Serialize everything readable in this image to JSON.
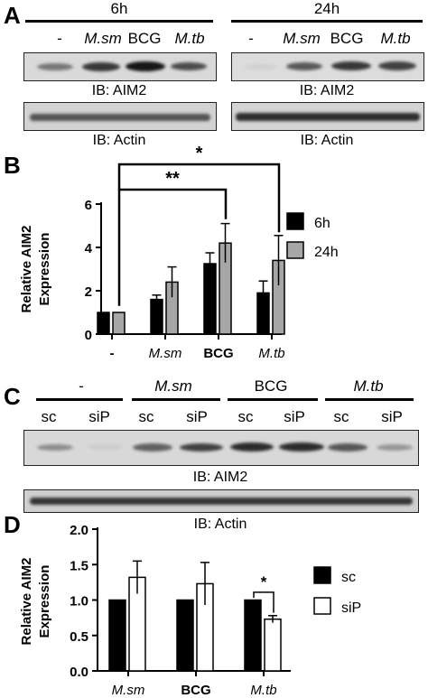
{
  "panelA": {
    "letter": "A",
    "groups": [
      {
        "time": "6h",
        "lanes": [
          "-",
          "M.sm",
          "BCG",
          "M.tb"
        ],
        "aim2_intensity": [
          0.45,
          0.75,
          0.9,
          0.65
        ],
        "actin_intensity": [
          0.6,
          0.6,
          0.6,
          0.6
        ]
      },
      {
        "time": "24h",
        "lanes": [
          "-",
          "M.sm",
          "BCG",
          "M.tb"
        ],
        "aim2_intensity": [
          0.05,
          0.6,
          0.75,
          0.7
        ],
        "actin_intensity": [
          0.8,
          0.75,
          0.75,
          0.75
        ]
      }
    ],
    "ib_aim2": "IB: AIM2",
    "ib_actin": "IB: Actin"
  },
  "panelB": {
    "letter": "B",
    "chart_data": {
      "type": "bar",
      "categories": [
        "-",
        "M.sm",
        "BCG",
        "M.tb"
      ],
      "category_italic": [
        false,
        true,
        false,
        true
      ],
      "category_bold": [
        true,
        false,
        true,
        false
      ],
      "series": [
        {
          "name": "6h",
          "values": [
            1.0,
            1.6,
            3.25,
            1.9
          ],
          "errors": [
            0,
            0.2,
            0.5,
            0.55
          ],
          "color": "#000000"
        },
        {
          "name": "24h",
          "values": [
            1.0,
            2.4,
            4.2,
            3.4
          ],
          "errors": [
            0,
            0.7,
            0.9,
            1.15
          ],
          "color": "#a6a6a6"
        }
      ],
      "ylabel": "Relative AIM2\nExpression",
      "ylim": [
        0,
        6
      ],
      "yticks": [
        "0",
        "2",
        "4",
        "6"
      ],
      "legend_placement": "right",
      "significance": [
        {
          "from": "-",
          "to": "BCG",
          "label": "**"
        },
        {
          "from": "-",
          "to": "M.tb",
          "label": "*"
        }
      ]
    }
  },
  "panelC": {
    "letter": "C",
    "groups": [
      {
        "label": "-",
        "italic": false,
        "lanes": [
          "sc",
          "siP"
        ],
        "aim2_intensity": [
          0.35,
          0.05
        ]
      },
      {
        "label": "M.sm",
        "italic": true,
        "lanes": [
          "sc",
          "siP"
        ],
        "aim2_intensity": [
          0.55,
          0.7
        ]
      },
      {
        "label": "BCG",
        "italic": false,
        "lanes": [
          "sc",
          "siP"
        ],
        "aim2_intensity": [
          0.8,
          0.8
        ]
      },
      {
        "label": "M.tb",
        "italic": true,
        "lanes": [
          "sc",
          "siP"
        ],
        "aim2_intensity": [
          0.6,
          0.3
        ]
      }
    ],
    "actin_intensity": [
      0.75,
      0.75,
      0.75,
      0.75,
      0.75,
      0.75,
      0.75,
      0.75
    ],
    "ib_aim2": "IB: AIM2",
    "ib_actin": "IB: Actin"
  },
  "panelD": {
    "letter": "D",
    "chart_data": {
      "type": "bar",
      "categories": [
        "M.sm",
        "BCG",
        "M.tb"
      ],
      "category_italic": [
        true,
        false,
        true
      ],
      "category_bold": [
        false,
        true,
        false
      ],
      "series": [
        {
          "name": "sc",
          "values": [
            1.0,
            1.0,
            1.0
          ],
          "errors": [
            0,
            0,
            0
          ],
          "color": "#000000"
        },
        {
          "name": "siP",
          "values": [
            1.32,
            1.23,
            0.73
          ],
          "errors": [
            0.23,
            0.3,
            0.05
          ],
          "color": "#ffffff"
        }
      ],
      "ylabel": "Relative AIM2\nExpression",
      "ylim": [
        0,
        2.0
      ],
      "yticks": [
        "0.0",
        "0.5",
        "1.0",
        "1.5",
        "2.0"
      ],
      "legend_placement": "right",
      "significance": [
        {
          "from": "M.tb",
          "to": "M.tb",
          "label": "*"
        }
      ]
    }
  }
}
